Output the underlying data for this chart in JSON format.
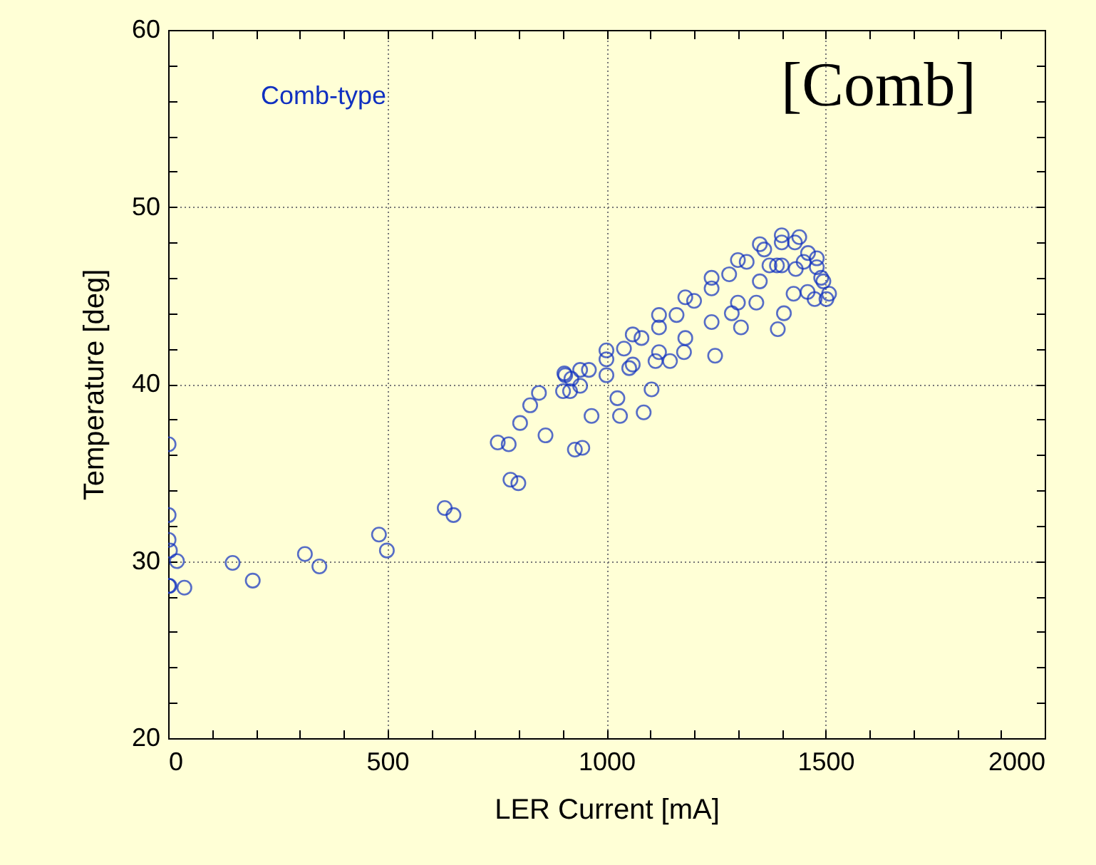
{
  "chart_data": {
    "type": "scatter",
    "xlabel": "LER Current [mA]",
    "ylabel": "Temperature [deg]",
    "annotations": [
      "Comb-type",
      "[Comb]"
    ],
    "xlim": [
      0,
      2000
    ],
    "ylim": [
      20,
      60
    ],
    "xticks": [
      0,
      {
        "value": 100,
        "label": null
      },
      {
        "value": 200,
        "label": null
      },
      {
        "value": 300,
        "label": null
      },
      {
        "value": 400,
        "label": null
      },
      500,
      {
        "value": 600,
        "label": null
      },
      {
        "value": 700,
        "label": null
      },
      {
        "value": 800,
        "label": null
      },
      {
        "value": 900,
        "label": null
      },
      1000,
      {
        "value": 1100,
        "label": null
      },
      {
        "value": 1200,
        "label": null
      },
      {
        "value": 1300,
        "label": null
      },
      {
        "value": 1400,
        "label": null
      },
      1500,
      {
        "value": 1600,
        "label": null
      },
      {
        "value": 1700,
        "label": null
      },
      {
        "value": 1800,
        "label": null
      },
      {
        "value": 1900,
        "label": null
      },
      2000
    ],
    "yticks": [
      20,
      {
        "value": 22,
        "label": null
      },
      {
        "value": 24,
        "label": null
      },
      {
        "value": 26,
        "label": null
      },
      {
        "value": 28,
        "label": null
      },
      30,
      {
        "value": 32,
        "label": null
      },
      {
        "value": 34,
        "label": null
      },
      {
        "value": 36,
        "label": null
      },
      {
        "value": 38,
        "label": null
      },
      40,
      {
        "value": 42,
        "label": null
      },
      {
        "value": 44,
        "label": null
      },
      {
        "value": 46,
        "label": null
      },
      {
        "value": 48,
        "label": null
      },
      50,
      {
        "value": 52,
        "label": null
      },
      {
        "value": 54,
        "label": null
      },
      {
        "value": 56,
        "label": null
      },
      {
        "value": 58,
        "label": null
      },
      60
    ],
    "grid": true,
    "marker": "circle",
    "series": [
      {
        "color": "#1030c0",
        "x": [
          1,
          1,
          1,
          4,
          20,
          1,
          3,
          37,
          147,
          193,
          312,
          345,
          481,
          499,
          631,
          651,
          781,
          799,
          861,
          928,
          945,
          966,
          1031,
          1085,
          752,
          777,
          803,
          826,
          846,
          904,
          906,
          901,
          1025,
          1103,
          1248,
          1342,
          1391,
          1427,
          1502,
          1475,
          1389,
          1432,
          1307,
          1177,
          1145,
          1052,
          1405,
          1459,
          920,
          960,
          1000,
          1040,
          1080,
          1120,
          1160,
          1200,
          1240,
          1280,
          1320,
          1360,
          1400,
          1430,
          1460,
          1480,
          1495,
          940,
          1000,
          1060,
          1120,
          1180,
          1240,
          1300,
          1350,
          1400,
          1450,
          1490,
          940,
          1000,
          1060,
          1120,
          1180,
          1240,
          1300,
          1350,
          1400,
          1440,
          917,
          1112,
          1286,
          1372,
          1480,
          1508
        ],
        "values": [
          36.6,
          32.6,
          31.2,
          30.6,
          30.0,
          28.6,
          28.6,
          28.5,
          29.9,
          28.9,
          30.4,
          29.7,
          31.5,
          30.6,
          33.0,
          32.6,
          34.6,
          34.4,
          37.1,
          36.3,
          36.4,
          38.2,
          38.2,
          38.4,
          36.7,
          36.6,
          37.8,
          38.8,
          39.5,
          40.6,
          40.5,
          39.6,
          39.2,
          39.7,
          41.6,
          44.6,
          43.1,
          45.1,
          44.8,
          44.8,
          46.7,
          46.5,
          43.2,
          41.8,
          41.3,
          40.9,
          44.0,
          45.2,
          40.3,
          40.8,
          41.4,
          42.0,
          42.6,
          43.2,
          43.9,
          44.7,
          45.4,
          46.2,
          46.9,
          47.6,
          48.0,
          48.0,
          47.4,
          46.6,
          45.8,
          39.9,
          40.5,
          41.1,
          41.8,
          42.6,
          43.5,
          44.6,
          45.8,
          46.7,
          46.9,
          46.0,
          40.8,
          41.9,
          42.8,
          43.9,
          44.9,
          46.0,
          47.0,
          47.9,
          48.4,
          48.3,
          39.6,
          41.3,
          44.0,
          46.7,
          47.1,
          45.1
        ]
      }
    ]
  }
}
